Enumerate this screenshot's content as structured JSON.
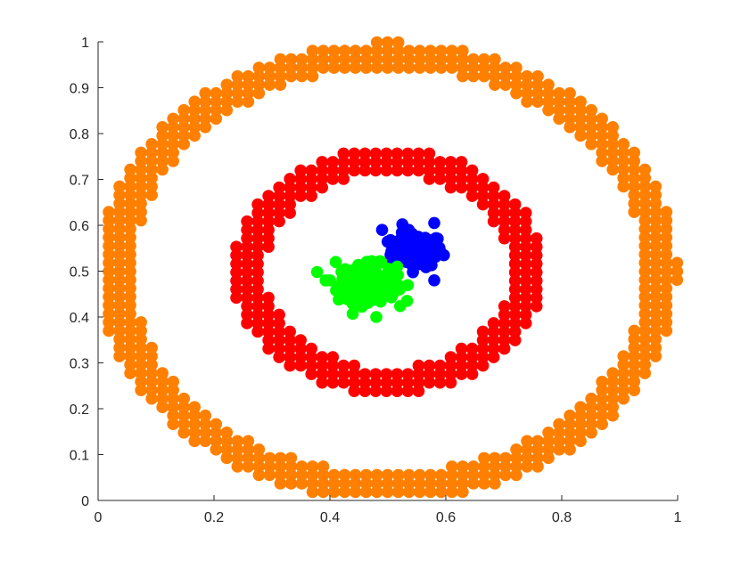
{
  "chart_data": {
    "type": "scatter",
    "xlim": [
      0,
      1
    ],
    "ylim": [
      0,
      1
    ],
    "x_ticks": [
      0,
      0.2,
      0.4,
      0.6,
      0.8,
      1
    ],
    "x_tick_labels": [
      "0",
      "0.2",
      "0.4",
      "0.6",
      "0.8",
      "1"
    ],
    "y_ticks": [
      0,
      0.1,
      0.2,
      0.3,
      0.4,
      0.5,
      0.6,
      0.7,
      0.8,
      0.9,
      1
    ],
    "y_tick_labels": [
      "0",
      "0.1",
      "0.2",
      "0.3",
      "0.4",
      "0.5",
      "0.6",
      "0.7",
      "0.8",
      "0.9",
      "1"
    ],
    "grid": false,
    "series": [
      {
        "shape": "ring",
        "color": "#ff8000",
        "center": [
          0.5,
          0.5
        ],
        "radius_min": 0.44,
        "radius_max": 0.5,
        "grid_step": 0.0185,
        "x_range": [
          0.0,
          1.0
        ],
        "y_range": [
          0.0,
          1.0
        ]
      },
      {
        "shape": "ring",
        "color": "#ff0000",
        "center": [
          0.5,
          0.5
        ],
        "radius_min": 0.21,
        "radius_max": 0.27,
        "grid_step": 0.0185,
        "x_range": [
          0.22,
          0.78
        ],
        "y_range": [
          0.22,
          0.78
        ]
      },
      {
        "shape": "cluster",
        "color": "#0000ff",
        "center": [
          0.55,
          0.545
        ],
        "spread": [
          0.022,
          0.018
        ],
        "count": 150,
        "extra_points": [
          [
            0.49,
            0.59
          ],
          [
            0.58,
            0.605
          ],
          [
            0.525,
            0.602
          ],
          [
            0.58,
            0.48
          ]
        ]
      },
      {
        "shape": "cluster",
        "color": "#00ff00",
        "center": [
          0.465,
          0.475
        ],
        "spread": [
          0.025,
          0.02
        ],
        "count": 180,
        "extra_points": [
          [
            0.4,
            0.48
          ],
          [
            0.41,
            0.52
          ],
          [
            0.48,
            0.4
          ],
          [
            0.52,
            0.46
          ]
        ]
      }
    ]
  }
}
